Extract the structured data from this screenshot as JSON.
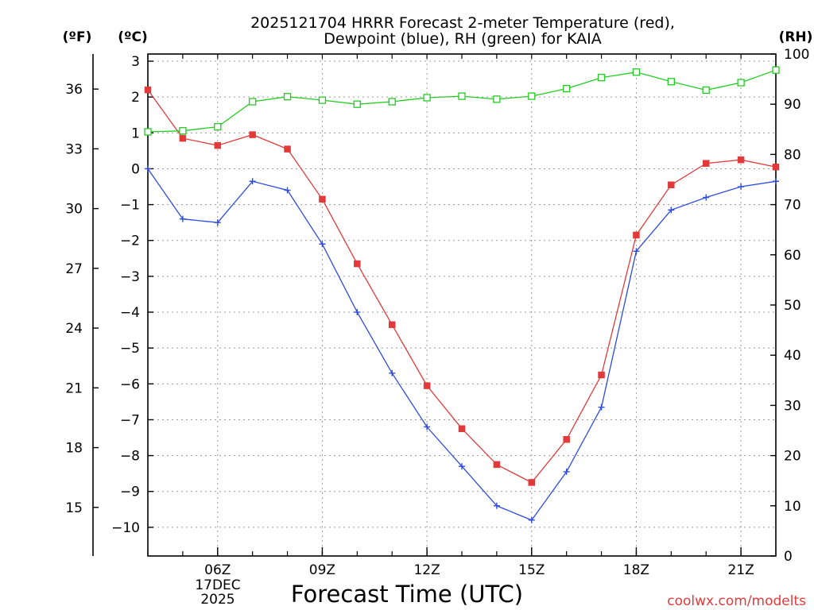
{
  "chart_data": {
    "type": "line",
    "title": [
      "2025121704 HRRR Forecast 2-meter Temperature (red),",
      "Dewpoint (blue), RH (green) for KAIA"
    ],
    "xlabel": "Forecast Time (UTC)",
    "left_unit_f": "(ºF)",
    "left_unit_c": "(ºC)",
    "right_unit": "(RH)",
    "credit": "coolwx.com/modelts",
    "x_hours": [
      4,
      5,
      6,
      7,
      8,
      9,
      10,
      11,
      12,
      13,
      14,
      15,
      16,
      17,
      18,
      19,
      20,
      21,
      22
    ],
    "xlim": [
      4,
      22
    ],
    "x_ticks": [
      {
        "hour": 6,
        "label": "06Z"
      },
      {
        "hour": 9,
        "label": "09Z"
      },
      {
        "hour": 12,
        "label": "12Z"
      },
      {
        "hour": 15,
        "label": "15Z"
      },
      {
        "hour": 18,
        "label": "18Z"
      },
      {
        "hour": 21,
        "label": "21Z"
      }
    ],
    "date_label": [
      "17DEC",
      "2025"
    ],
    "ylim_c": [
      -10.8,
      3.2
    ],
    "celsius_ticks": [
      3,
      2,
      1,
      0,
      -1,
      -2,
      -3,
      -4,
      -5,
      -6,
      -7,
      -8,
      -9,
      -10
    ],
    "fahrenheit_ticks": [
      36,
      33,
      30,
      27,
      24,
      21,
      18,
      15
    ],
    "ylim_rh": [
      0,
      100
    ],
    "rh_ticks": [
      0,
      10,
      20,
      30,
      40,
      50,
      60,
      70,
      80,
      90,
      100
    ],
    "series": [
      {
        "name": "Temperature",
        "unit": "C",
        "color": "#e23a3a",
        "marker": "filled-square",
        "values": [
          2.2,
          0.85,
          0.65,
          0.95,
          0.55,
          -0.85,
          -2.65,
          -4.35,
          -6.05,
          -7.25,
          -8.25,
          -8.75,
          -7.55,
          -5.75,
          -1.85,
          -0.45,
          0.15,
          0.25,
          0.05
        ]
      },
      {
        "name": "Dewpoint",
        "unit": "C",
        "color": "#2e4be0",
        "marker": "plus",
        "values": [
          0.0,
          -1.4,
          -1.5,
          -0.35,
          -0.6,
          -2.1,
          -4.0,
          -5.7,
          -7.2,
          -8.3,
          -9.4,
          -9.8,
          -8.45,
          -6.65,
          -2.3,
          -1.15,
          -0.8,
          -0.5,
          -0.35
        ]
      },
      {
        "name": "RH",
        "unit": "%",
        "color": "#22cc22",
        "marker": "open-square",
        "values": [
          84.5,
          84.7,
          85.5,
          90.5,
          91.5,
          90.8,
          90.0,
          90.5,
          91.3,
          91.6,
          91.0,
          91.6,
          93.1,
          95.3,
          96.4,
          94.5,
          92.8,
          94.3,
          96.8
        ]
      }
    ]
  }
}
